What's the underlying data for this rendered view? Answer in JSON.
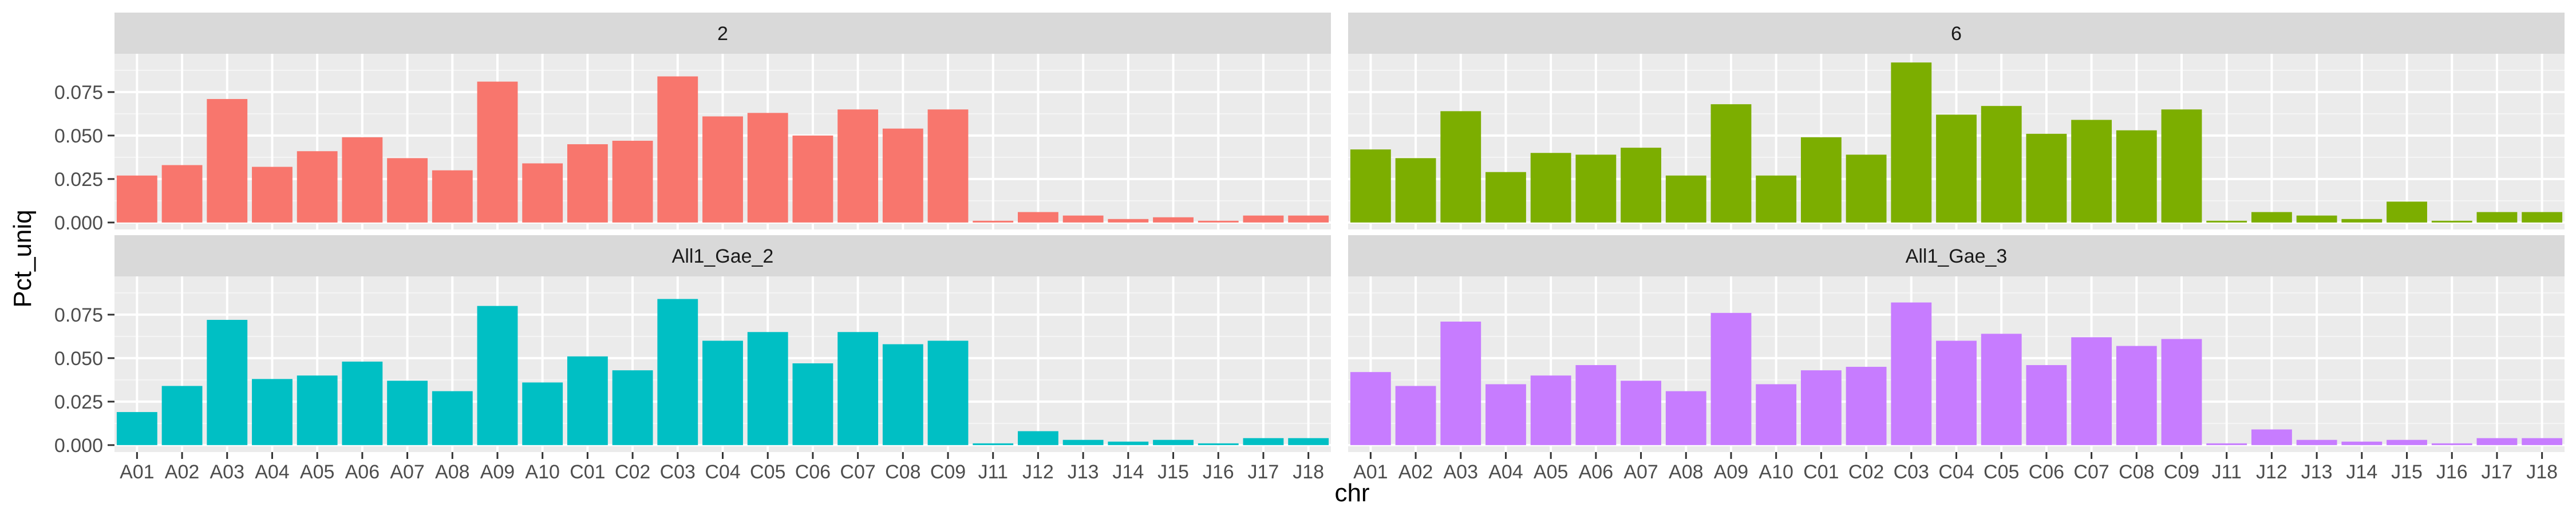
{
  "chart_data": {
    "type": "bar",
    "xlabel": "chr",
    "ylabel": "Pct_uniq",
    "ylim": [
      -0.004,
      0.097
    ],
    "yticks": [
      "0.000",
      "0.025",
      "0.050",
      "0.075"
    ],
    "ytick_values": [
      0,
      0.025,
      0.05,
      0.075
    ],
    "categories": [
      "A01",
      "A02",
      "A03",
      "A04",
      "A05",
      "A06",
      "A07",
      "A08",
      "A09",
      "A10",
      "C01",
      "C02",
      "C03",
      "C04",
      "C05",
      "C06",
      "C07",
      "C08",
      "C09",
      "J11",
      "J12",
      "J13",
      "J14",
      "J15",
      "J16",
      "J17",
      "J18"
    ],
    "grid": true,
    "legend": "none",
    "panels": [
      {
        "name": "2",
        "color": "#F8766D",
        "values": [
          0.027,
          0.033,
          0.071,
          0.032,
          0.041,
          0.049,
          0.037,
          0.03,
          0.081,
          0.034,
          0.045,
          0.047,
          0.084,
          0.061,
          0.063,
          0.05,
          0.065,
          0.054,
          0.065,
          0.001,
          0.006,
          0.004,
          0.002,
          0.003,
          0.001,
          0.004,
          0.004
        ]
      },
      {
        "name": "6",
        "color": "#7CAE00",
        "values": [
          0.042,
          0.037,
          0.064,
          0.029,
          0.04,
          0.039,
          0.043,
          0.027,
          0.068,
          0.027,
          0.049,
          0.039,
          0.092,
          0.062,
          0.067,
          0.051,
          0.059,
          0.053,
          0.065,
          0.001,
          0.006,
          0.004,
          0.002,
          0.012,
          0.001,
          0.006,
          0.006
        ]
      },
      {
        "name": "All1_Gae_2",
        "color": "#00BFC4",
        "values": [
          0.019,
          0.034,
          0.072,
          0.038,
          0.04,
          0.048,
          0.037,
          0.031,
          0.08,
          0.036,
          0.051,
          0.043,
          0.084,
          0.06,
          0.065,
          0.047,
          0.065,
          0.058,
          0.06,
          0.001,
          0.008,
          0.003,
          0.002,
          0.003,
          0.001,
          0.004,
          0.004
        ]
      },
      {
        "name": "All1_Gae_3",
        "color": "#C77CFF",
        "values": [
          0.042,
          0.034,
          0.071,
          0.035,
          0.04,
          0.046,
          0.037,
          0.031,
          0.076,
          0.035,
          0.043,
          0.045,
          0.082,
          0.06,
          0.064,
          0.046,
          0.062,
          0.057,
          0.061,
          0.001,
          0.009,
          0.003,
          0.002,
          0.003,
          0.001,
          0.004,
          0.004
        ]
      }
    ]
  }
}
